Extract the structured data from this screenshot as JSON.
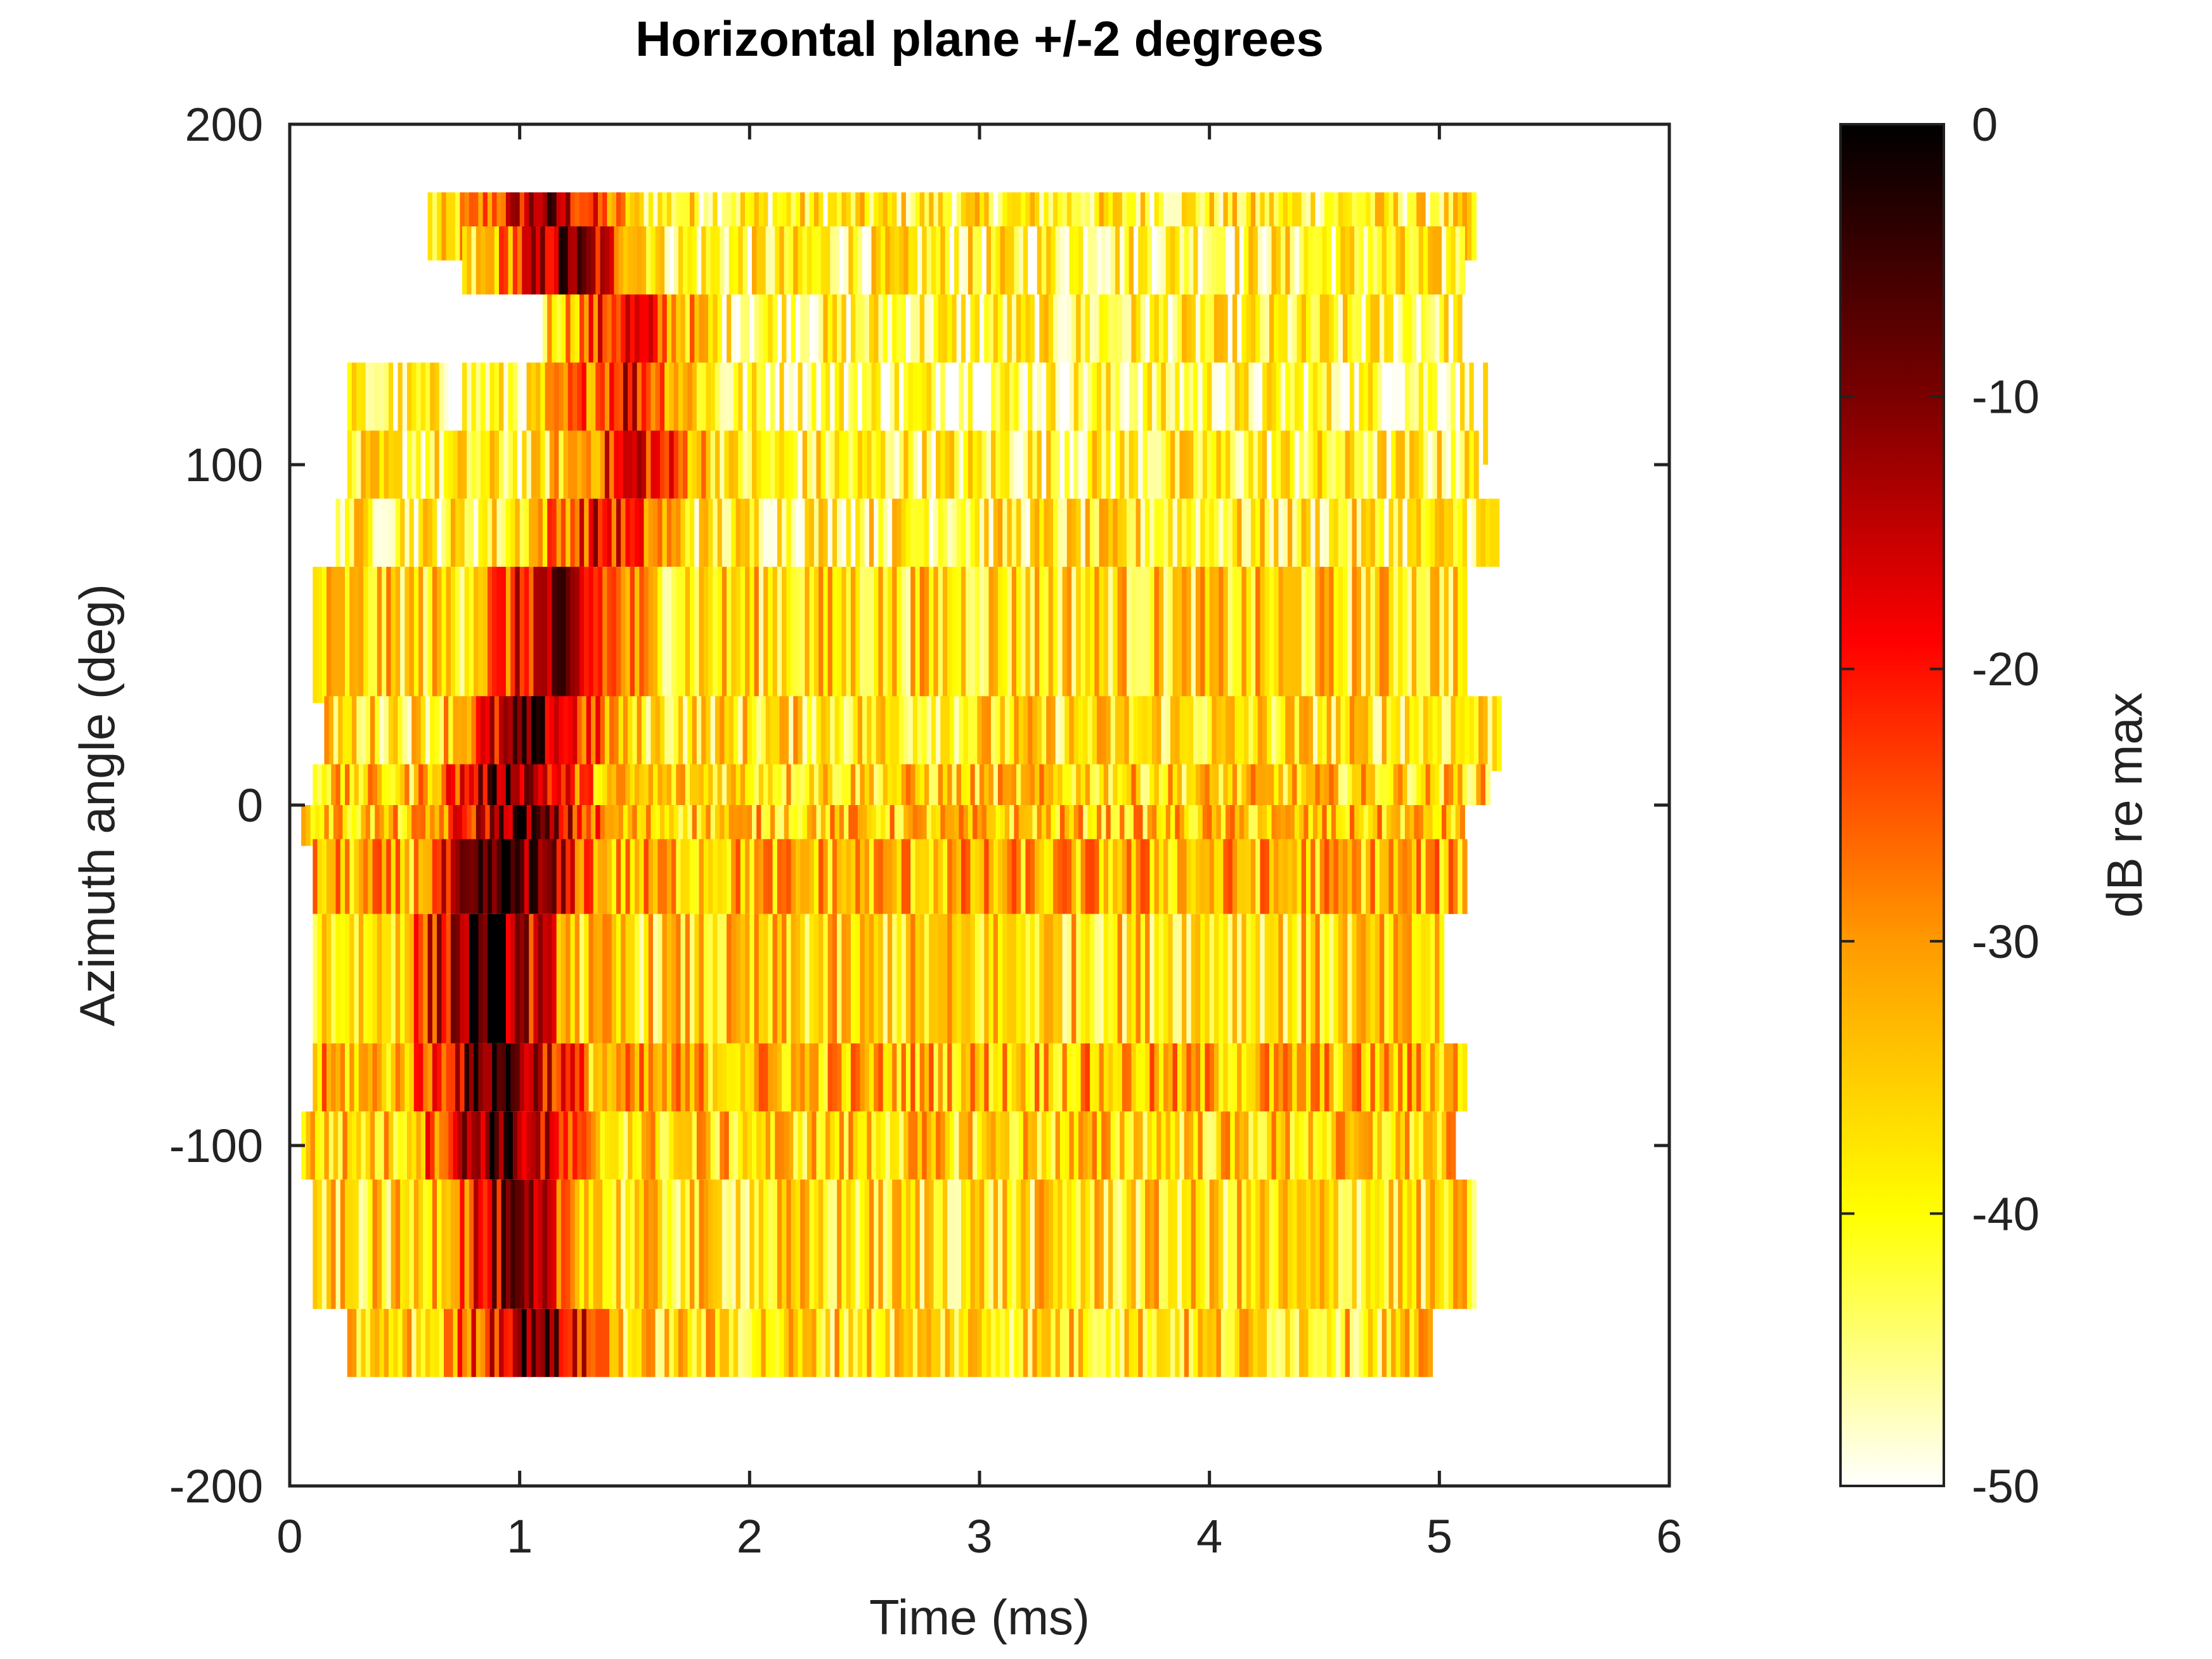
{
  "chart_data": {
    "type": "heatmap",
    "title": "Horizontal plane +/-2 degrees",
    "xlabel": "Time (ms)",
    "ylabel": "Azimuth angle (deg)",
    "xlim": [
      0,
      6
    ],
    "ylim": [
      -200,
      200
    ],
    "x_ticks": [
      "0",
      "1",
      "2",
      "3",
      "4",
      "5",
      "6"
    ],
    "y_ticks": [
      "-200",
      "-100",
      "0",
      "100",
      "200"
    ],
    "colorbar": {
      "label": "dB re max",
      "range": [
        -50,
        0
      ],
      "ticks": [
        "0",
        "-10",
        "-20",
        "-30",
        "-40",
        "-50"
      ],
      "colormap": "hot (white to yellow to red to black)"
    },
    "rows": [
      {
        "az_range": [
          160,
          180
        ],
        "t_start": 0.6,
        "t_end": 5.15,
        "peak_time": 1.1,
        "peak_db": -10,
        "mean_db": -40
      },
      {
        "az_range": [
          150,
          170
        ],
        "t_start": 0.75,
        "t_end": 5.1,
        "peak_time": 1.2,
        "peak_db": -8,
        "mean_db": -41
      },
      {
        "az_range": [
          115,
          150
        ],
        "t_start": 1.1,
        "t_end": 5.1,
        "peak_time": 1.45,
        "peak_db": -18,
        "mean_db": -42
      },
      {
        "az_range": [
          100,
          130
        ],
        "t_start": 0.25,
        "t_end": 5.2,
        "peak_time": 1.45,
        "peak_db": -16,
        "mean_db": -43
      },
      {
        "az_range": [
          90,
          110
        ],
        "t_start": 0.25,
        "t_end": 5.15,
        "peak_time": 1.5,
        "peak_db": -16,
        "mean_db": -41
      },
      {
        "az_range": [
          70,
          90
        ],
        "t_start": 0.2,
        "t_end": 5.25,
        "peak_time": 1.35,
        "peak_db": -18,
        "mean_db": -40
      },
      {
        "az_range": [
          30,
          70
        ],
        "t_start": 0.1,
        "t_end": 5.1,
        "peak_time": 1.15,
        "peak_db": -12,
        "mean_db": -37
      },
      {
        "az_range": [
          10,
          32
        ],
        "t_start": 0.15,
        "t_end": 5.25,
        "peak_time": 1.05,
        "peak_db": -8,
        "mean_db": -38
      },
      {
        "az_range": [
          0,
          12
        ],
        "t_start": 0.1,
        "t_end": 5.2,
        "peak_time": 0.95,
        "peak_db": -6,
        "mean_db": -36
      },
      {
        "az_range": [
          -12,
          0
        ],
        "t_start": 0.05,
        "t_end": 5.1,
        "peak_time": 1.0,
        "peak_db": -5,
        "mean_db": -35
      },
      {
        "az_range": [
          -32,
          -10
        ],
        "t_start": 0.1,
        "t_end": 5.1,
        "peak_time": 0.95,
        "peak_db": -3,
        "mean_db": -33
      },
      {
        "az_range": [
          -70,
          -32
        ],
        "t_start": 0.1,
        "t_end": 5.0,
        "peak_time": 0.85,
        "peak_db": -2,
        "mean_db": -37
      },
      {
        "az_range": [
          -90,
          -70
        ],
        "t_start": 0.1,
        "t_end": 5.1,
        "peak_time": 0.9,
        "peak_db": -3,
        "mean_db": -33
      },
      {
        "az_range": [
          -110,
          -90
        ],
        "t_start": 0.05,
        "t_end": 5.05,
        "peak_time": 0.9,
        "peak_db": -4,
        "mean_db": -36
      },
      {
        "az_range": [
          -148,
          -110
        ],
        "t_start": 0.1,
        "t_end": 5.15,
        "peak_time": 0.95,
        "peak_db": -12,
        "mean_db": -38
      },
      {
        "az_range": [
          -168,
          -148
        ],
        "t_start": 0.25,
        "t_end": 4.95,
        "peak_time": 1.05,
        "peak_db": -6,
        "mean_db": -37
      }
    ],
    "grid": false
  }
}
